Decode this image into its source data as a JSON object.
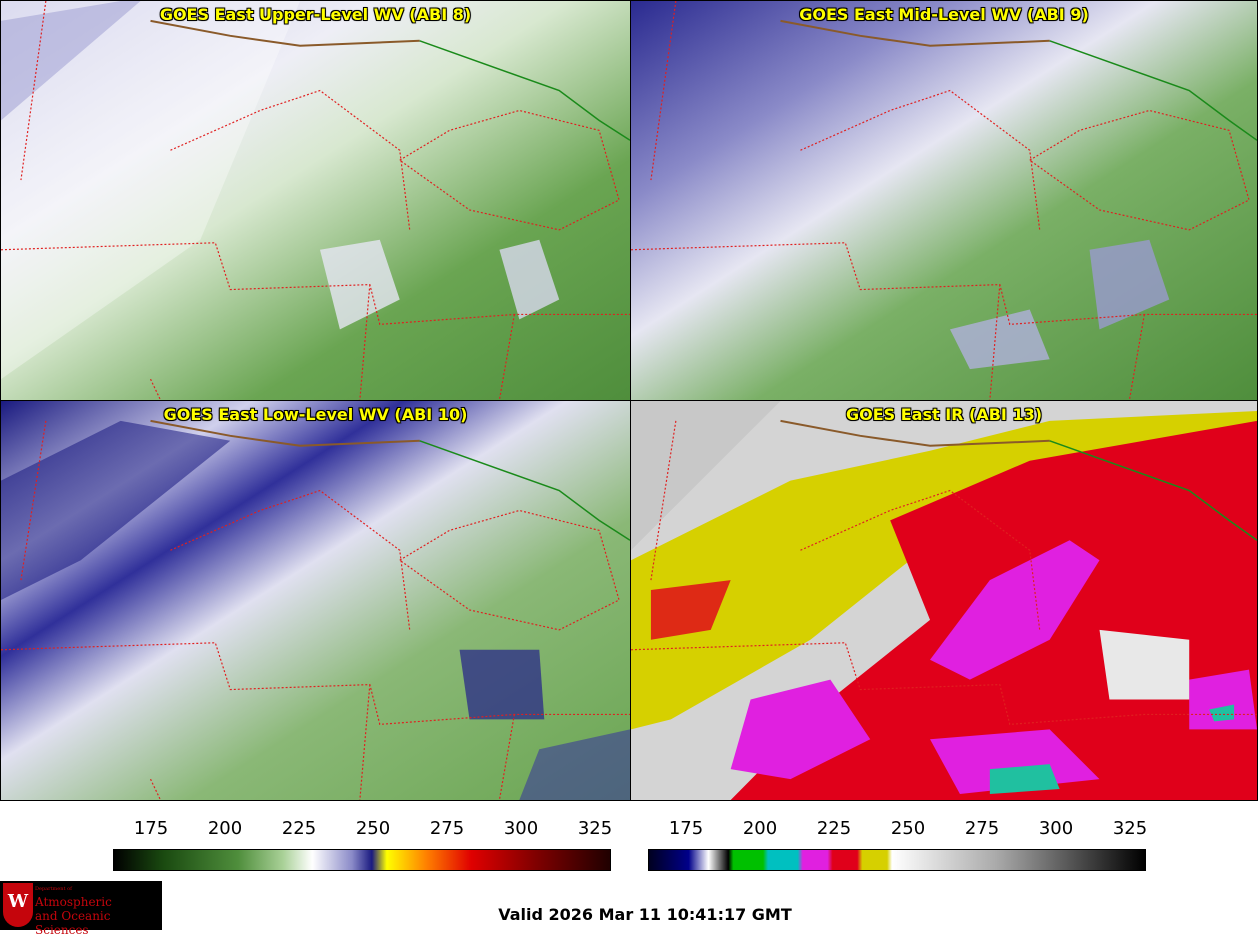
{
  "panels": [
    {
      "title": "GOES East Upper-Level WV (ABI 8)",
      "palette": "wv",
      "land_color": "#5c9a45",
      "cold_color": "#8a8ac8"
    },
    {
      "title": "GOES East Mid-Level WV (ABI 9)",
      "palette": "wv",
      "land_color": "#4f8e3c",
      "cold_color": "#4848a8"
    },
    {
      "title": "GOES East Low-Level WV (ABI 10)",
      "palette": "wv",
      "land_color": "#6aa552",
      "cold_color": "#1a1a80"
    },
    {
      "title": "GOES East IR (ABI 13)",
      "palette": "ir",
      "land_color": "#d8d8d8",
      "cold_color": "#e0001a"
    }
  ],
  "colorbars": [
    {
      "ticks": [
        "175",
        "200",
        "225",
        "250",
        "275",
        "300",
        "325"
      ]
    },
    {
      "ticks": [
        "175",
        "200",
        "225",
        "250",
        "275",
        "300",
        "325"
      ]
    }
  ],
  "footer": {
    "valid_text": "Valid 2026 Mar 11 10:41:17 GMT",
    "logo_small": "Department of",
    "logo_line1": "Atmospheric",
    "logo_line2": "and Oceanic Sciences",
    "logo_letter": "W"
  },
  "colors": {
    "state_border": "#e02020",
    "country_border": "#1a8a1a",
    "coast": "#8a5a2a",
    "title_text": "#ffff00"
  }
}
